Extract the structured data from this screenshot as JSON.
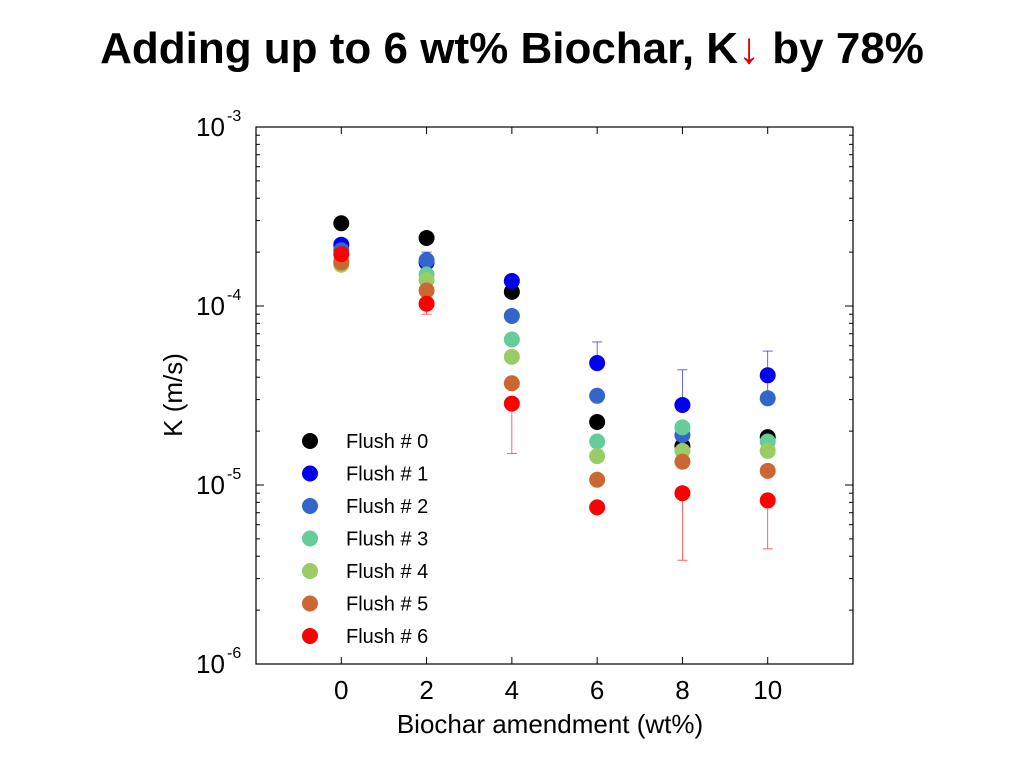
{
  "slide": {
    "title_part1": "Adding up to 6 wt% Biochar, K",
    "title_arrow": "↓",
    "title_part2": " by 78%",
    "arrow_color": "#e00000"
  },
  "chart_data": {
    "type": "scatter",
    "xlabel": "Biochar amendment (wt%)",
    "ylabel": "K (m/s)",
    "xlim": [
      -2,
      12
    ],
    "ylim": [
      1e-06,
      0.001
    ],
    "y_scale": "log",
    "x_ticks": [
      0,
      2,
      4,
      6,
      8,
      10
    ],
    "y_ticks": [
      {
        "base": "10",
        "exp": "-3",
        "value": 0.001
      },
      {
        "base": "10",
        "exp": "-4",
        "value": 0.0001
      },
      {
        "base": "10",
        "exp": "-5",
        "value": 1e-05
      },
      {
        "base": "10",
        "exp": "-6",
        "value": 1e-06
      }
    ],
    "legend_position": "lower-left",
    "error_bars": true,
    "series": [
      {
        "name": "Flush # 0",
        "color": "#000000",
        "x": [
          0,
          2,
          4,
          6,
          8,
          10
        ],
        "y": [
          0.00029,
          0.00024,
          0.00012,
          2.25e-05,
          1.65e-05,
          1.85e-05
        ]
      },
      {
        "name": "Flush # 1",
        "color": "#0000ee",
        "x": [
          0,
          2,
          4,
          6,
          8,
          10
        ],
        "y": [
          0.00022,
          0.000175,
          0.000138,
          4.8e-05,
          2.8e-05,
          4.1e-05
        ],
        "err_upper": [
          null,
          0.0002,
          null,
          6.3e-05,
          4.4e-05,
          5.6e-05
        ],
        "err_lower": [
          null,
          null,
          null,
          null,
          null,
          2.9e-05
        ]
      },
      {
        "name": "Flush # 2",
        "color": "#3366cc",
        "x": [
          0,
          2,
          4,
          6,
          8,
          10
        ],
        "y": [
          0.000205,
          0.00018,
          8.8e-05,
          3.15e-05,
          1.9e-05,
          3.05e-05
        ]
      },
      {
        "name": "Flush # 3",
        "color": "#66cc99",
        "x": [
          0,
          2,
          4,
          6,
          8,
          10
        ],
        "y": [
          0.00018,
          0.00015,
          6.5e-05,
          1.75e-05,
          2.1e-05,
          1.75e-05
        ]
      },
      {
        "name": "Flush # 4",
        "color": "#99cc66",
        "x": [
          0,
          2,
          4,
          6,
          8,
          10
        ],
        "y": [
          0.00017,
          0.00014,
          5.2e-05,
          1.45e-05,
          1.55e-05,
          1.55e-05
        ]
      },
      {
        "name": "Flush # 5",
        "color": "#cc6633",
        "x": [
          0,
          2,
          4,
          6,
          8,
          10
        ],
        "y": [
          0.000175,
          0.000122,
          3.7e-05,
          1.07e-05,
          1.35e-05,
          1.2e-05
        ]
      },
      {
        "name": "Flush # 6",
        "color": "#ff0000",
        "x": [
          0,
          2,
          4,
          6,
          8,
          10
        ],
        "y": [
          0.000195,
          0.000103,
          2.85e-05,
          7.5e-06,
          9e-06,
          8.2e-06
        ],
        "err_upper": [
          null,
          null,
          null,
          null,
          null,
          null
        ],
        "err_lower": [
          null,
          9e-05,
          1.5e-05,
          null,
          3.8e-06,
          4.4e-06
        ]
      }
    ]
  }
}
